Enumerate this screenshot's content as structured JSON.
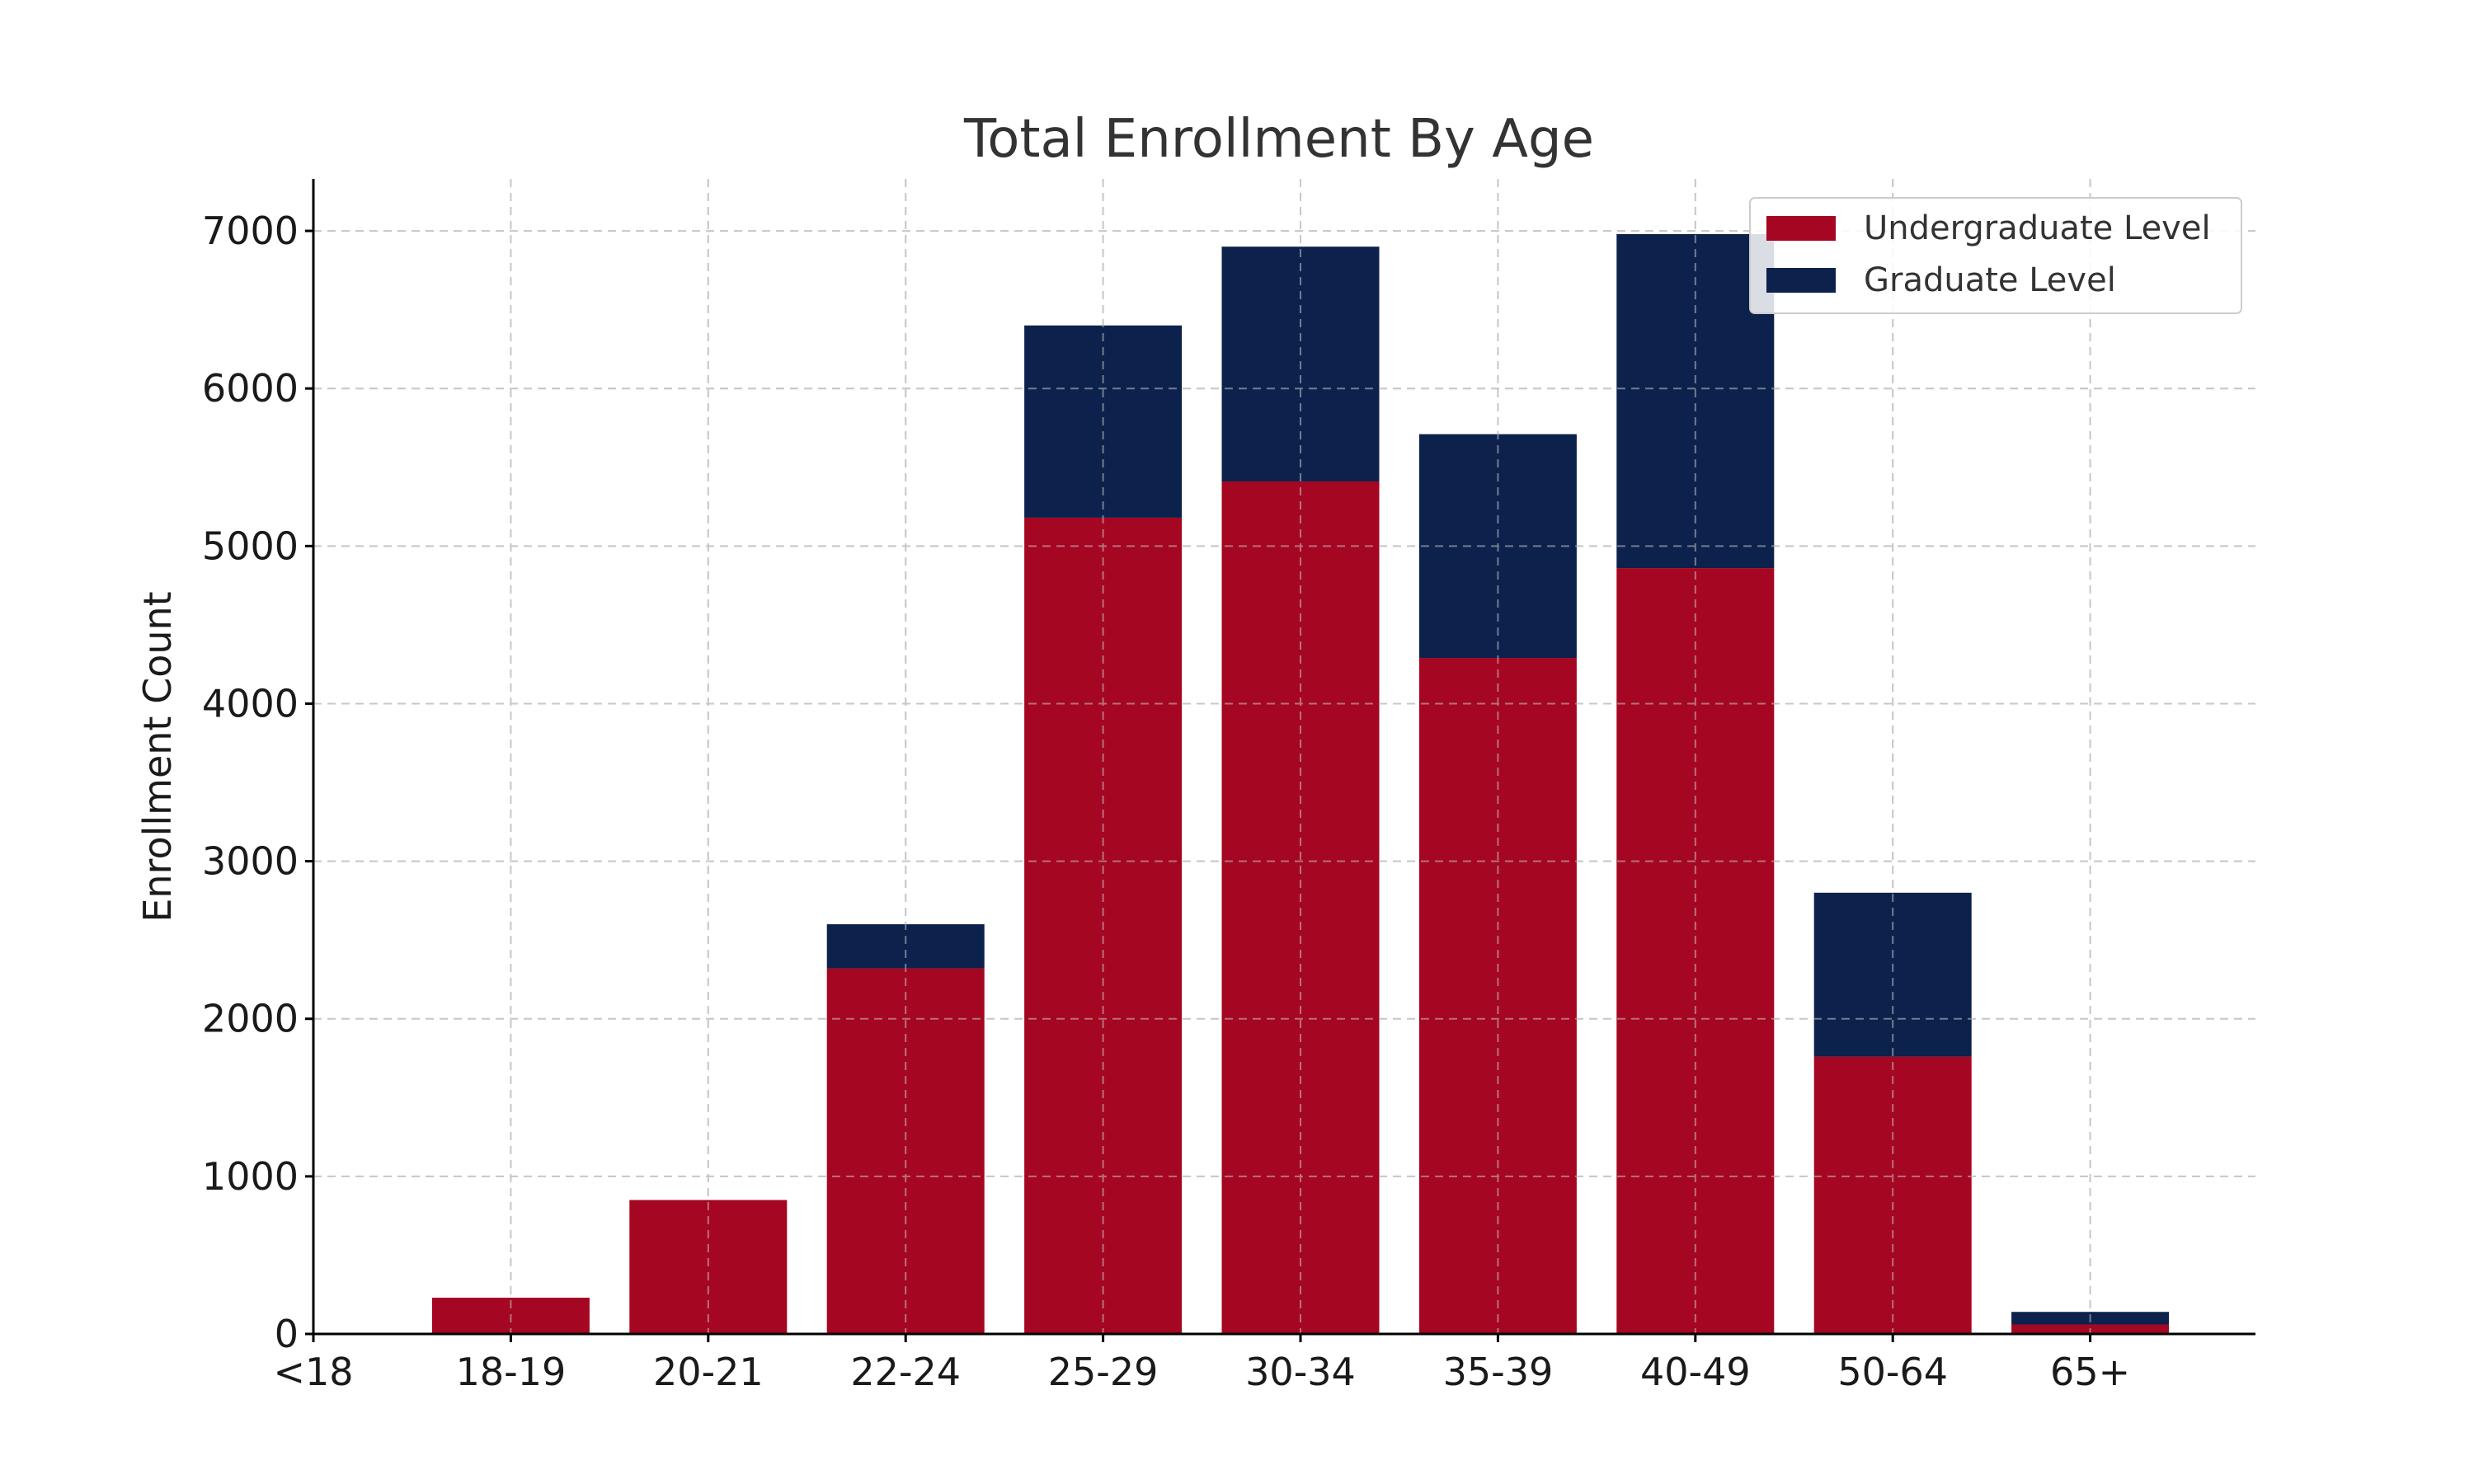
{
  "chart_data": {
    "type": "bar",
    "stacked": true,
    "title": "Total Enrollment By Age",
    "xlabel": "",
    "ylabel": "Enrollment Count",
    "categories": [
      "<18",
      "18-19",
      "20-21",
      "22-24",
      "25-29",
      "30-34",
      "35-39",
      "40-49",
      "50-64",
      "65+"
    ],
    "series": [
      {
        "name": "Undergraduate Level",
        "color": "#a50621",
        "values": [
          0,
          230,
          850,
          2320,
          5180,
          5410,
          4290,
          4860,
          1760,
          60
        ]
      },
      {
        "name": "Graduate Level",
        "color": "#0c214b",
        "values": [
          0,
          0,
          0,
          280,
          1220,
          1490,
          1420,
          2120,
          1040,
          80
        ]
      }
    ],
    "yticks": [
      0,
      1000,
      2000,
      3000,
      4000,
      5000,
      6000,
      7000
    ],
    "ylim": [
      0,
      7330
    ],
    "grid": true,
    "legend": {
      "position": "top-right"
    }
  }
}
